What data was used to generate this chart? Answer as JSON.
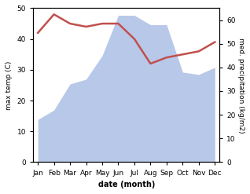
{
  "months": [
    "Jan",
    "Feb",
    "Mar",
    "Apr",
    "May",
    "Jun",
    "Jul",
    "Aug",
    "Sep",
    "Oct",
    "Nov",
    "Dec"
  ],
  "month_positions": [
    0,
    1,
    2,
    3,
    4,
    5,
    6,
    7,
    8,
    9,
    10,
    11
  ],
  "precipitation": [
    18,
    22,
    33,
    35,
    45,
    62,
    62,
    58,
    58,
    38,
    37,
    40
  ],
  "temperature": [
    42,
    48,
    45,
    44,
    45,
    45,
    40,
    32,
    34,
    35,
    36,
    39
  ],
  "temp_color": "#c0504d",
  "precip_color": "#b8c8e8",
  "ylabel_left": "max temp (C)",
  "ylabel_right": "med. precipitation (kg/m2)",
  "xlabel": "date (month)",
  "ylim_left": [
    0,
    50
  ],
  "ylim_right": [
    0,
    65
  ],
  "yticks_left": [
    0,
    10,
    20,
    30,
    40,
    50
  ],
  "yticks_right": [
    0,
    10,
    20,
    30,
    40,
    50,
    60
  ],
  "bg_color": "#ffffff",
  "line_width": 1.8
}
